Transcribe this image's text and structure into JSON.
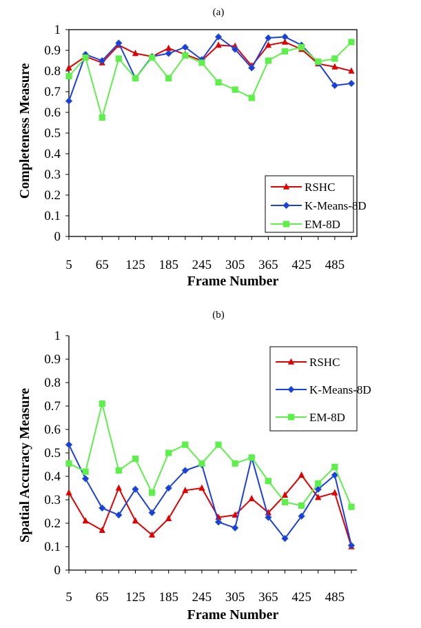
{
  "chart_data": [
    {
      "type": "line",
      "title": "(a)",
      "xlabel": "Frame Number",
      "ylabel": "Completeness Measure",
      "x": [
        5,
        35,
        65,
        95,
        125,
        155,
        185,
        215,
        245,
        275,
        305,
        335,
        365,
        395,
        425,
        455,
        485,
        515
      ],
      "x_tick_labels": [
        "5",
        "65",
        "125",
        "185",
        "245",
        "305",
        "365",
        "425",
        "485"
      ],
      "y_tick_labels": [
        "0",
        "0.1",
        "0.2",
        "0.3",
        "0.4",
        "0.5",
        "0.6",
        "0.7",
        "0.8",
        "0.9",
        "1"
      ],
      "ylim": [
        0,
        1
      ],
      "grid": false,
      "legend_position": "bottom-right",
      "series": [
        {
          "name": "RSHC",
          "color": "#e00000",
          "marker": "triangle",
          "values": [
            0.815,
            0.87,
            0.84,
            0.925,
            0.885,
            0.87,
            0.91,
            0.88,
            0.85,
            0.925,
            0.92,
            0.825,
            0.925,
            0.94,
            0.905,
            0.835,
            0.82,
            0.8
          ]
        },
        {
          "name": "K-Means-8D",
          "color": "#1a3ee0",
          "marker": "diamond",
          "values": [
            0.655,
            0.88,
            0.85,
            0.935,
            0.765,
            0.87,
            0.885,
            0.915,
            0.855,
            0.965,
            0.905,
            0.815,
            0.96,
            0.965,
            0.925,
            0.84,
            0.73,
            0.74
          ]
        },
        {
          "name": "EM-8D",
          "color": "#5ef04a",
          "marker": "square",
          "values": [
            0.775,
            0.865,
            0.575,
            0.86,
            0.765,
            0.865,
            0.765,
            0.875,
            0.84,
            0.745,
            0.71,
            0.67,
            0.85,
            0.895,
            0.915,
            0.845,
            0.86,
            0.94
          ]
        }
      ]
    },
    {
      "type": "line",
      "title": "(b)",
      "xlabel": "Frame Number",
      "ylabel": "Spatial Accuracy Measure",
      "x": [
        5,
        35,
        65,
        95,
        125,
        155,
        185,
        215,
        245,
        275,
        305,
        335,
        365,
        395,
        425,
        455,
        485,
        515
      ],
      "x_tick_labels": [
        "5",
        "65",
        "125",
        "185",
        "245",
        "305",
        "365",
        "425",
        "485"
      ],
      "y_tick_labels": [
        "0",
        "0.1",
        "0.2",
        "0.3",
        "0.4",
        "0.5",
        "0.6",
        "0.7",
        "0.8",
        "0.9",
        "1"
      ],
      "ylim": [
        0,
        1
      ],
      "grid": false,
      "legend_position": "top-right",
      "series": [
        {
          "name": "RSHC",
          "color": "#e00000",
          "marker": "triangle",
          "values": [
            0.33,
            0.21,
            0.17,
            0.35,
            0.21,
            0.15,
            0.22,
            0.34,
            0.35,
            0.225,
            0.235,
            0.305,
            0.245,
            0.32,
            0.405,
            0.31,
            0.33,
            0.1
          ]
        },
        {
          "name": "K-Means-8D",
          "color": "#1a3ee0",
          "marker": "diamond",
          "values": [
            0.535,
            0.39,
            0.265,
            0.235,
            0.345,
            0.245,
            0.35,
            0.425,
            0.45,
            0.205,
            0.18,
            0.48,
            0.225,
            0.135,
            0.23,
            0.345,
            0.405,
            0.105
          ]
        },
        {
          "name": "EM-8D",
          "color": "#5ef04a",
          "marker": "square",
          "values": [
            0.455,
            0.42,
            0.71,
            0.425,
            0.475,
            0.33,
            0.5,
            0.535,
            0.455,
            0.535,
            0.455,
            0.48,
            0.38,
            0.29,
            0.275,
            0.37,
            0.44,
            0.27
          ]
        }
      ]
    }
  ]
}
